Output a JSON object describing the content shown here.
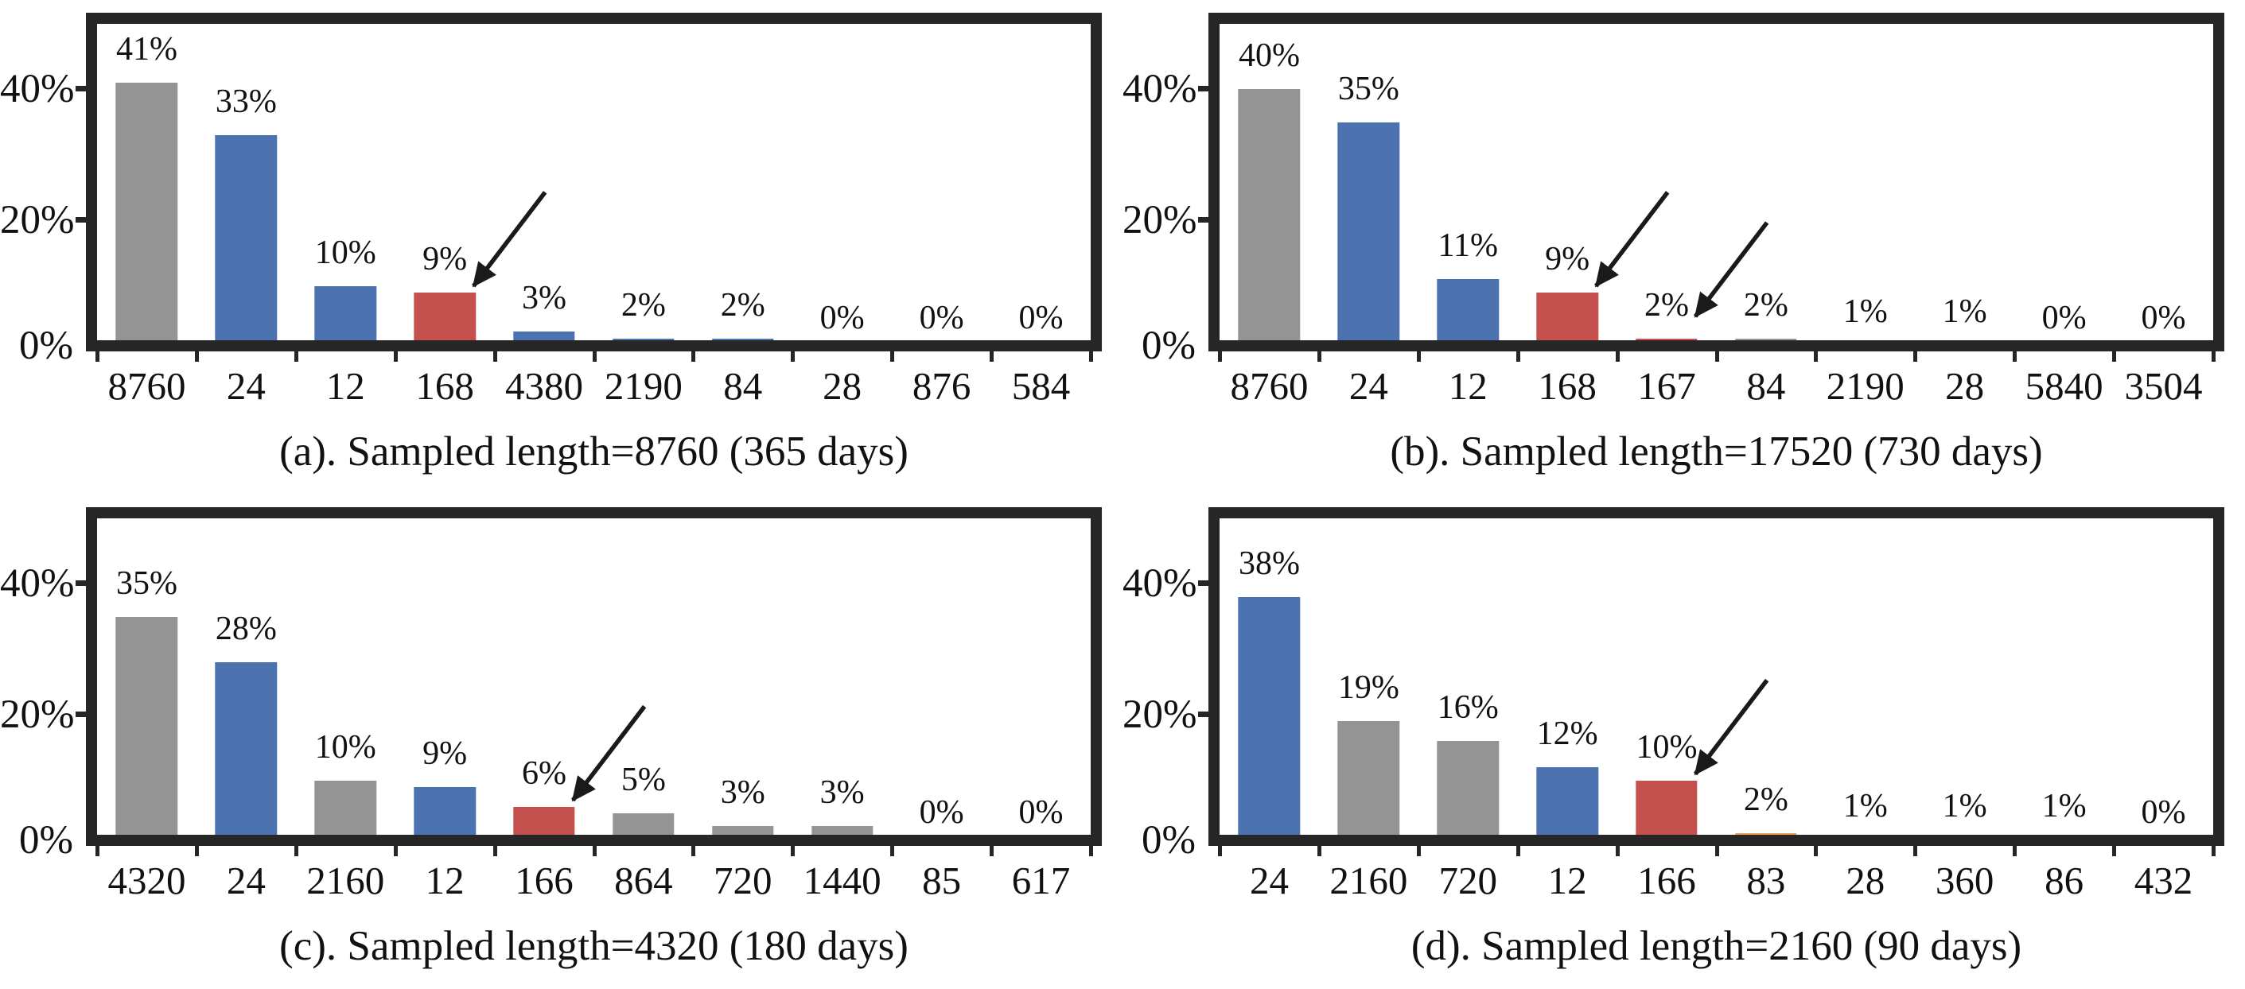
{
  "figure_name": "sampling-interval-percentage-distribution",
  "palette": {
    "axis_dark": "#262626",
    "text": "#111111",
    "background": "#ffffff",
    "bar_gray": "#949494",
    "bar_blue": "#4C73B0",
    "bar_red": "#C4514E",
    "bar_orange": "#E9A05C"
  },
  "y_axis": {
    "tick_labels_top_to_bottom": [
      "40%",
      "20%",
      "0%"
    ],
    "tick_values": [
      40,
      20,
      0
    ],
    "max_pct": 50
  },
  "chart_data": [
    {
      "id": "a",
      "type": "bar",
      "title": "(a). Sampled length=8760 (365 days)",
      "categories": [
        "8760",
        "24",
        "12",
        "168",
        "4380",
        "2190",
        "84",
        "28",
        "876",
        "584"
      ],
      "values": [
        41,
        33,
        10,
        9,
        3,
        2,
        2,
        0,
        0,
        0
      ],
      "value_labels": [
        "41%",
        "33%",
        "10%",
        "9%",
        "3%",
        "2%",
        "2%",
        "0%",
        "0%",
        "0%"
      ],
      "bar_colors": [
        "gray",
        "blue",
        "blue",
        "red",
        "blue",
        "blue",
        "blue",
        "gray",
        "gray",
        "gray"
      ],
      "ylim": [
        0,
        50
      ],
      "yticks": [
        "0%",
        "20%",
        "40%"
      ],
      "grid": false,
      "legend": "none",
      "arrows": [
        {
          "target_index": 3,
          "note": "arrow pointing to red bar at 168"
        }
      ]
    },
    {
      "id": "b",
      "type": "bar",
      "title": "(b). Sampled length=17520 (730 days)",
      "categories": [
        "8760",
        "24",
        "12",
        "168",
        "167",
        "84",
        "2190",
        "28",
        "5840",
        "3504"
      ],
      "values": [
        40,
        35,
        11,
        9,
        2,
        2,
        1,
        1,
        0,
        0
      ],
      "value_labels": [
        "40%",
        "35%",
        "11%",
        "9%",
        "2%",
        "2%",
        "1%",
        "1%",
        "0%",
        "0%"
      ],
      "bar_colors": [
        "gray",
        "blue",
        "blue",
        "red",
        "red",
        "gray",
        "gray",
        "gray",
        "gray",
        "gray"
      ],
      "ylim": [
        0,
        50
      ],
      "yticks": [
        "0%",
        "20%",
        "40%"
      ],
      "grid": false,
      "legend": "none",
      "arrows": [
        {
          "target_index": 3,
          "note": "arrow pointing to red bar at 168"
        },
        {
          "target_index": 4,
          "tip_y": 368,
          "note": "arrow pointing to tiny red bar at 167"
        }
      ]
    },
    {
      "id": "c",
      "type": "bar",
      "title": "(c). Sampled length=4320 (180 days)",
      "categories": [
        "4320",
        "24",
        "2160",
        "12",
        "166",
        "864",
        "720",
        "1440",
        "85",
        "617"
      ],
      "values": [
        35,
        28,
        10,
        9,
        6,
        5,
        3,
        3,
        0,
        0
      ],
      "value_labels": [
        "35%",
        "28%",
        "10%",
        "9%",
        "6%",
        "5%",
        "3%",
        "3%",
        "0%",
        "0%"
      ],
      "bar_colors": [
        "gray",
        "blue",
        "gray",
        "blue",
        "red",
        "gray",
        "gray",
        "gray",
        "gray",
        "gray"
      ],
      "ylim": [
        0,
        50
      ],
      "yticks": [
        "0%",
        "20%",
        "40%"
      ],
      "grid": false,
      "legend": "none",
      "arrows": [
        {
          "target_index": 4,
          "note": "arrow pointing to red bar at 166"
        }
      ]
    },
    {
      "id": "d",
      "type": "bar",
      "title": "(d). Sampled length=2160 (90 days)",
      "categories": [
        "24",
        "2160",
        "720",
        "12",
        "166",
        "83",
        "28",
        "360",
        "86",
        "432"
      ],
      "values": [
        38,
        19,
        16,
        12,
        10,
        2,
        1,
        1,
        1,
        0
      ],
      "value_labels": [
        "38%",
        "19%",
        "16%",
        "12%",
        "10%",
        "2%",
        "1%",
        "1%",
        "1%",
        "0%"
      ],
      "bar_colors": [
        "blue",
        "gray",
        "gray",
        "blue",
        "red",
        "orange",
        "gray",
        "gray",
        "gray",
        "gray"
      ],
      "ylim": [
        0,
        50
      ],
      "yticks": [
        "0%",
        "20%",
        "40%"
      ],
      "grid": false,
      "legend": "none",
      "arrows": [
        {
          "target_index": 4,
          "note": "arrow pointing to red bar at 166"
        }
      ]
    }
  ]
}
